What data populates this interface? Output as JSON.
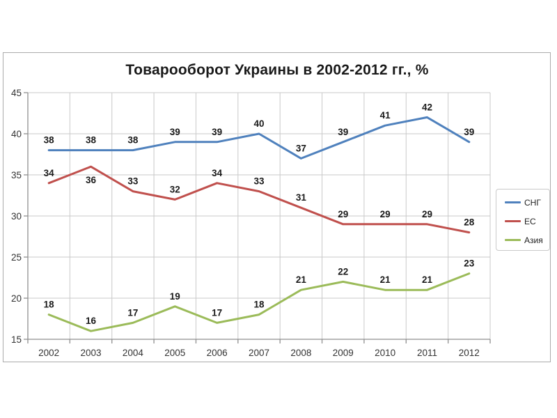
{
  "chart_data": {
    "type": "line",
    "title": "Товарооборот Украины в 2002-2012 гг., %",
    "categories": [
      "2002",
      "2003",
      "2004",
      "2005",
      "2006",
      "2007",
      "2008",
      "2009",
      "2010",
      "2011",
      "2012"
    ],
    "series": [
      {
        "name": "СНГ",
        "color": "#4F81BD",
        "values": [
          38,
          38,
          38,
          39,
          39,
          40,
          37,
          39,
          41,
          42,
          39
        ],
        "label_below_categories": []
      },
      {
        "name": "ЕС",
        "color": "#C0504D",
        "values": [
          34,
          36,
          33,
          32,
          34,
          33,
          31,
          29,
          29,
          29,
          28
        ],
        "label_below_categories": [
          "2003"
        ]
      },
      {
        "name": "Азия",
        "color": "#9BBB59",
        "values": [
          18,
          16,
          17,
          19,
          17,
          18,
          21,
          22,
          21,
          21,
          23
        ],
        "label_below_categories": []
      }
    ],
    "ylim": [
      15,
      45
    ],
    "yticks": [
      15,
      20,
      25,
      30,
      35,
      40,
      45
    ],
    "grid": true,
    "data_labels": true,
    "legend_position": "right"
  },
  "colors": {
    "background": "#ffffff",
    "frame_border": "#ababab",
    "gridline": "#c9c9c9",
    "axis": "#8e8e8e",
    "tick_label": "#333333",
    "data_label": "#1a1a1a",
    "title": "#1a1a1a",
    "legend_border": "#c9c9c9",
    "legend_text": "#1f1f1f"
  }
}
